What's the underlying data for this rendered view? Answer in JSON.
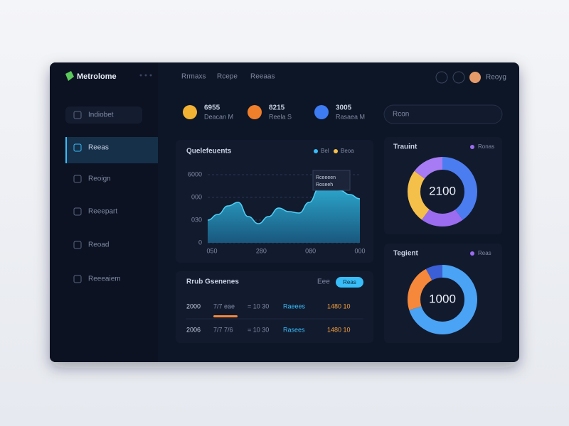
{
  "brand": "Metrolome",
  "top_nav": [
    "Rrmaxs",
    "Rcepe",
    "Reeaas"
  ],
  "user": "Reoyg",
  "sidebar": [
    "Indiobet",
    "Reeas",
    "Reoign",
    "Reeepart",
    "Reoad",
    "Reeeaiem"
  ],
  "stats": [
    {
      "value": "6955",
      "label": "Deacan M"
    },
    {
      "value": "8215",
      "label": "Reela S"
    },
    {
      "value": "3005",
      "label": "Rasaea M"
    }
  ],
  "search": "Rcon",
  "area_chart": {
    "type": "area",
    "title": "Quelefeuents",
    "legend": [
      "Bel",
      "Beoa"
    ],
    "tooltip": [
      "Rceeeen",
      "Roseeh"
    ],
    "values": [
      2000,
      2500,
      3250,
      3560,
      2310,
      1690,
      2310,
      3060,
      2750,
      2625,
      3560,
      4810,
      5000,
      4625,
      4250,
      3875
    ],
    "x_labels": [
      "050",
      "280",
      "080",
      "000"
    ],
    "ylim": [
      0,
      6000
    ],
    "yticks": [
      0,
      {
        "value": 2000,
        "label": "030"
      },
      {
        "value": 4000,
        "label": "000"
      },
      6000
    ]
  },
  "table": {
    "title": "Rrub Gsenenes",
    "filter": "Eee",
    "button": "Reas",
    "rows": [
      [
        "2000",
        "7/7 eae",
        "= 10 30",
        "Raeees",
        "1480 10"
      ],
      [
        "2006",
        "7/7 7/6",
        "= 10 30",
        "Rasees",
        "1480 10"
      ]
    ]
  },
  "donuts": [
    {
      "title": "Trauint",
      "legend": "Ronas",
      "center": "2100",
      "segments": [
        {
          "value": 40,
          "color": "#4c7df0"
        },
        {
          "value": 20,
          "color": "#9b6cf0"
        },
        {
          "value": 25,
          "color": "#f5c04a"
        },
        {
          "value": 15,
          "color": "#a77bf3"
        }
      ]
    },
    {
      "title": "Tegient",
      "legend": "Reas",
      "center": "1000",
      "segments": [
        {
          "value": 70,
          "color": "#4aa3f5"
        },
        {
          "value": 22,
          "color": "#f5883a"
        },
        {
          "value": 8,
          "color": "#3b5fd6"
        }
      ]
    }
  ]
}
